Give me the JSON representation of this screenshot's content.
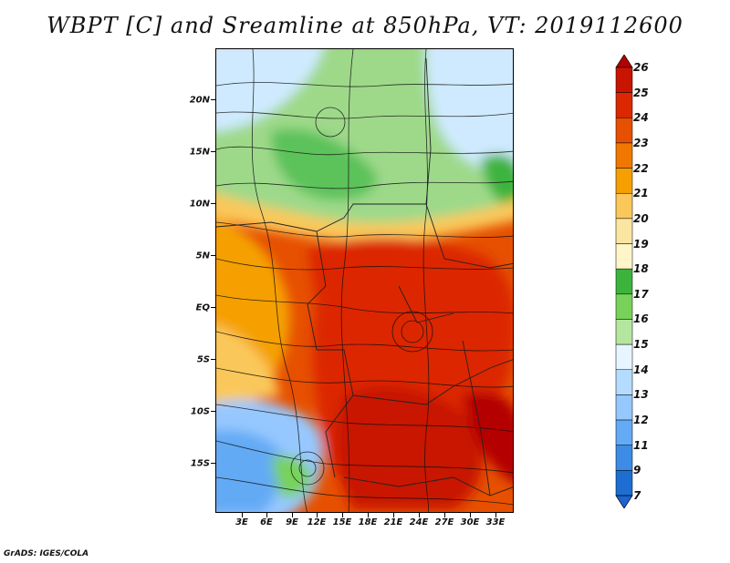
{
  "title": "WBPT [C] and Sreamline at 850hPa, VT: 2019112600",
  "credit": "GrADS: IGES/COLA",
  "map": {
    "lat_labels": [
      "20N",
      "15N",
      "10N",
      "5N",
      "EQ",
      "5S",
      "10S",
      "15S"
    ],
    "lon_labels": [
      "3E",
      "6E",
      "9E",
      "12E",
      "15E",
      "18E",
      "21E",
      "24E",
      "27E",
      "30E",
      "33E"
    ],
    "field": "Wet-bulb potential temperature with 850hPa streamlines"
  },
  "colorbar": {
    "labels": [
      "26",
      "25",
      "24",
      "23",
      "22",
      "21",
      "20",
      "19",
      "18",
      "17",
      "16",
      "15",
      "14",
      "13",
      "12",
      "11",
      "9",
      "7"
    ],
    "colors": [
      "#b40000",
      "#c81400",
      "#dc2800",
      "#e65000",
      "#f07800",
      "#f5a000",
      "#fac85a",
      "#fae6a0",
      "#fff5c8",
      "#3cb43c",
      "#78d25a",
      "#b4e6a0",
      "#e6f5ff",
      "#b4dcff",
      "#96c8ff",
      "#64aaf5",
      "#3c8ce6",
      "#1e6ed2",
      "#1e64d2"
    ]
  }
}
